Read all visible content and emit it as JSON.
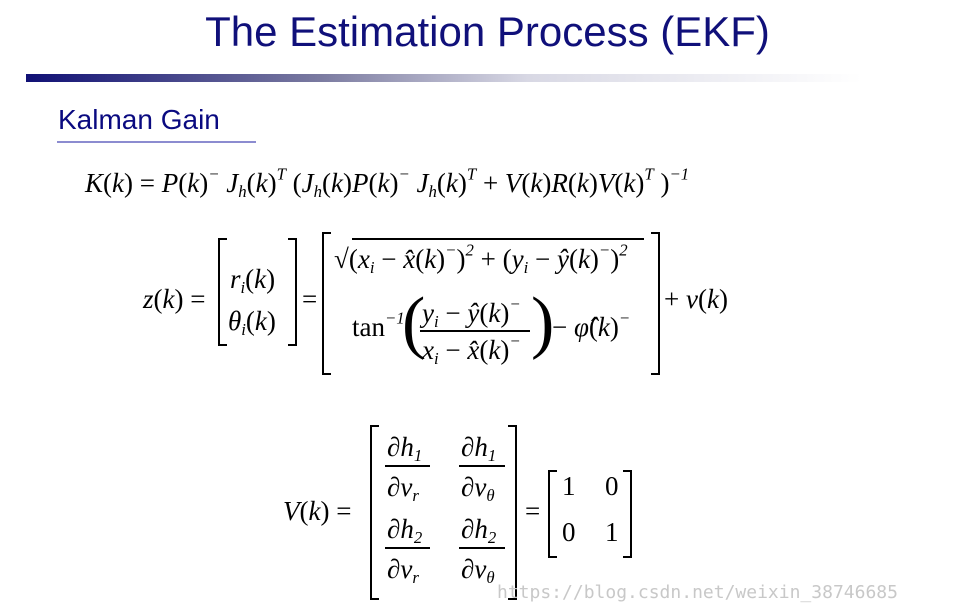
{
  "slide": {
    "title": "The Estimation Process (EKF)",
    "subtitle": "Kalman Gain",
    "watermark": "https://blog.csdn.net/weixin_38746685",
    "colors": {
      "title": "#10107a",
      "subtitle": "#0a0a80",
      "underline": "#8c8cd0",
      "bar_start": "#101075"
    }
  },
  "eq1": [
    {
      "t": "K"
    },
    {
      "t": "(",
      "v": "n"
    },
    {
      "t": "k"
    },
    {
      "t": ") = ",
      "v": "n"
    },
    {
      "t": "P"
    },
    {
      "t": "(",
      "v": "n"
    },
    {
      "t": "k"
    },
    {
      "t": ")",
      "v": "n"
    },
    {
      "t": "−",
      "v": "sup"
    },
    {
      "t": " J"
    },
    {
      "t": "h",
      "v": "sub"
    },
    {
      "t": "(",
      "v": "n"
    },
    {
      "t": "k"
    },
    {
      "t": ")",
      "v": "n"
    },
    {
      "t": "T",
      "v": "sup"
    },
    {
      "t": " (",
      "v": "n"
    },
    {
      "t": "J"
    },
    {
      "t": "h",
      "v": "sub"
    },
    {
      "t": "(",
      "v": "n"
    },
    {
      "t": "k"
    },
    {
      "t": ")",
      "v": "n"
    },
    {
      "t": "P"
    },
    {
      "t": "(",
      "v": "n"
    },
    {
      "t": "k"
    },
    {
      "t": ")",
      "v": "n"
    },
    {
      "t": "−",
      "v": "sup"
    },
    {
      "t": " J"
    },
    {
      "t": "h",
      "v": "sub"
    },
    {
      "t": "(",
      "v": "n"
    },
    {
      "t": "k"
    },
    {
      "t": ")",
      "v": "n"
    },
    {
      "t": "T",
      "v": "sup"
    },
    {
      "t": " + ",
      "v": "n"
    },
    {
      "t": "V"
    },
    {
      "t": "(",
      "v": "n"
    },
    {
      "t": "k"
    },
    {
      "t": ")",
      "v": "n"
    },
    {
      "t": "R"
    },
    {
      "t": "(",
      "v": "n"
    },
    {
      "t": "k"
    },
    {
      "t": ")",
      "v": "n"
    },
    {
      "t": "V"
    },
    {
      "t": "(",
      "v": "n"
    },
    {
      "t": "k"
    },
    {
      "t": ")",
      "v": "n"
    },
    {
      "t": "T",
      "v": "sup"
    },
    {
      "t": " )",
      "v": "n"
    },
    {
      "t": "−1",
      "v": "sup"
    }
  ],
  "eq2": {
    "lhs": [
      {
        "t": "z"
      },
      {
        "t": "(",
        "v": "n"
      },
      {
        "t": "k"
      },
      {
        "t": ") =",
        "v": "n"
      }
    ],
    "left_r1": [
      {
        "t": "r"
      },
      {
        "t": "i",
        "v": "sub"
      },
      {
        "t": "(",
        "v": "n"
      },
      {
        "t": "k"
      },
      {
        "t": ")",
        "v": "n"
      }
    ],
    "left_r2": [
      {
        "t": "θ"
      },
      {
        "t": "i",
        "v": "sub"
      },
      {
        "t": "(",
        "v": "n"
      },
      {
        "t": "k"
      },
      {
        "t": ")",
        "v": "n"
      }
    ],
    "eq": [
      {
        "t": "=",
        "v": "n"
      }
    ],
    "right_r1": [
      {
        "t": "√",
        "v": "n"
      },
      {
        "t": "(",
        "v": "n"
      },
      {
        "t": "x"
      },
      {
        "t": "i",
        "v": "sub"
      },
      {
        "t": " − ",
        "v": "n"
      },
      {
        "t": "x̂"
      },
      {
        "t": "(",
        "v": "n"
      },
      {
        "t": "k"
      },
      {
        "t": ")",
        "v": "n"
      },
      {
        "t": "−",
        "v": "sup"
      },
      {
        "t": ")",
        "v": "n"
      },
      {
        "t": "2",
        "v": "sup"
      },
      {
        "t": " + ",
        "v": "n"
      },
      {
        "t": "(",
        "v": "n"
      },
      {
        "t": "y"
      },
      {
        "t": "i",
        "v": "sub"
      },
      {
        "t": " − ",
        "v": "n"
      },
      {
        "t": "ŷ"
      },
      {
        "t": "(",
        "v": "n"
      },
      {
        "t": "k"
      },
      {
        "t": ")",
        "v": "n"
      },
      {
        "t": "−",
        "v": "sup"
      },
      {
        "t": ")",
        "v": "n"
      },
      {
        "t": "2",
        "v": "sup"
      }
    ],
    "tan": [
      {
        "t": "tan",
        "v": "n"
      },
      {
        "t": "−1",
        "v": "sup"
      }
    ],
    "num": [
      {
        "t": "y"
      },
      {
        "t": "i",
        "v": "sub"
      },
      {
        "t": " − ",
        "v": "n"
      },
      {
        "t": "ŷ"
      },
      {
        "t": "(",
        "v": "n"
      },
      {
        "t": "k"
      },
      {
        "t": ")",
        "v": "n"
      },
      {
        "t": "−",
        "v": "sup"
      }
    ],
    "den": [
      {
        "t": "x"
      },
      {
        "t": "i",
        "v": "sub"
      },
      {
        "t": " − ",
        "v": "n"
      },
      {
        "t": "x̂"
      },
      {
        "t": "(",
        "v": "n"
      },
      {
        "t": "k"
      },
      {
        "t": ")",
        "v": "n"
      },
      {
        "t": "−",
        "v": "sup"
      }
    ],
    "phi": [
      {
        "t": "− ",
        "v": "n"
      },
      {
        "t": "φ̂"
      },
      {
        "t": "(",
        "v": "n"
      },
      {
        "t": "k"
      },
      {
        "t": ")",
        "v": "n"
      },
      {
        "t": "−",
        "v": "sup"
      }
    ],
    "rhs": [
      {
        "t": "+ ",
        "v": "n"
      },
      {
        "t": "v"
      },
      {
        "t": "(",
        "v": "n"
      },
      {
        "t": "k"
      },
      {
        "t": ")",
        "v": "n"
      }
    ]
  },
  "eq3": {
    "lhs": [
      {
        "t": "V"
      },
      {
        "t": "(",
        "v": "n"
      },
      {
        "t": "k"
      },
      {
        "t": ") =",
        "v": "n"
      }
    ],
    "n11": [
      {
        "t": "∂h"
      },
      {
        "t": "1",
        "v": "sub"
      }
    ],
    "d11": [
      {
        "t": "∂v"
      },
      {
        "t": "r",
        "v": "sub"
      }
    ],
    "n12": [
      {
        "t": "∂h"
      },
      {
        "t": "1",
        "v": "sub"
      }
    ],
    "d12": [
      {
        "t": "∂v"
      },
      {
        "t": "θ",
        "v": "sub"
      }
    ],
    "n21": [
      {
        "t": "∂h"
      },
      {
        "t": "2",
        "v": "sub"
      }
    ],
    "d21": [
      {
        "t": "∂v"
      },
      {
        "t": "r",
        "v": "sub"
      }
    ],
    "n22": [
      {
        "t": "∂h"
      },
      {
        "t": "2",
        "v": "sub"
      }
    ],
    "d22": [
      {
        "t": "∂v"
      },
      {
        "t": "θ",
        "v": "sub"
      }
    ],
    "eq": [
      {
        "t": "=",
        "v": "n"
      }
    ],
    "i11": [
      {
        "t": "1",
        "v": "n"
      }
    ],
    "i12": [
      {
        "t": "0",
        "v": "n"
      }
    ],
    "i21": [
      {
        "t": "0",
        "v": "n"
      }
    ],
    "i22": [
      {
        "t": "1",
        "v": "n"
      }
    ]
  }
}
